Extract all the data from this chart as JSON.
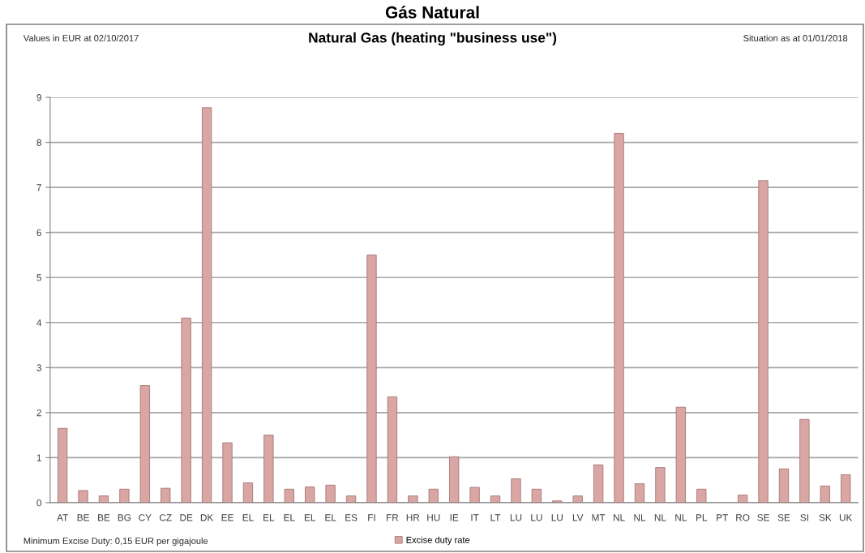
{
  "chart_data": {
    "type": "bar",
    "title": "Gás Natural",
    "subtitle": "Natural Gas (heating \"business use\")",
    "annotations": [
      "Values in EUR at 02/10/2017",
      "Situation as at 01/01/2018",
      "Minimum Excise Duty: 0,15 EUR per gigajoule"
    ],
    "categories": [
      "AT",
      "BE",
      "BE",
      "BG",
      "CY",
      "CZ",
      "DE",
      "DK",
      "EE",
      "EL",
      "EL",
      "EL",
      "EL",
      "EL",
      "ES",
      "FI",
      "FR",
      "HR",
      "HU",
      "IE",
      "IT",
      "LT",
      "LU",
      "LU",
      "LU",
      "LV",
      "MT",
      "NL",
      "NL",
      "NL",
      "NL",
      "PL",
      "PT",
      "RO",
      "SE",
      "SE",
      "SI",
      "SK",
      "UK"
    ],
    "series": [
      {
        "name": "Excise duty rate",
        "color": "#d9a6a4",
        "values": [
          1.65,
          0.27,
          0.15,
          0.3,
          2.6,
          0.32,
          4.1,
          8.77,
          1.33,
          0.44,
          1.5,
          0.3,
          0.35,
          0.39,
          0.15,
          5.5,
          2.35,
          0.15,
          0.3,
          1.02,
          0.34,
          0.15,
          0.53,
          0.3,
          0.04,
          0.15,
          0.84,
          8.2,
          0.42,
          0.78,
          2.12,
          0.3,
          null,
          0.17,
          7.15,
          0.75,
          1.85,
          0.37,
          0.62
        ]
      }
    ],
    "ylim": [
      0,
      9
    ],
    "yticks": [
      0,
      1,
      2,
      3,
      4,
      5,
      6,
      7,
      8,
      9
    ],
    "grid": "y",
    "legend": "bottom"
  }
}
